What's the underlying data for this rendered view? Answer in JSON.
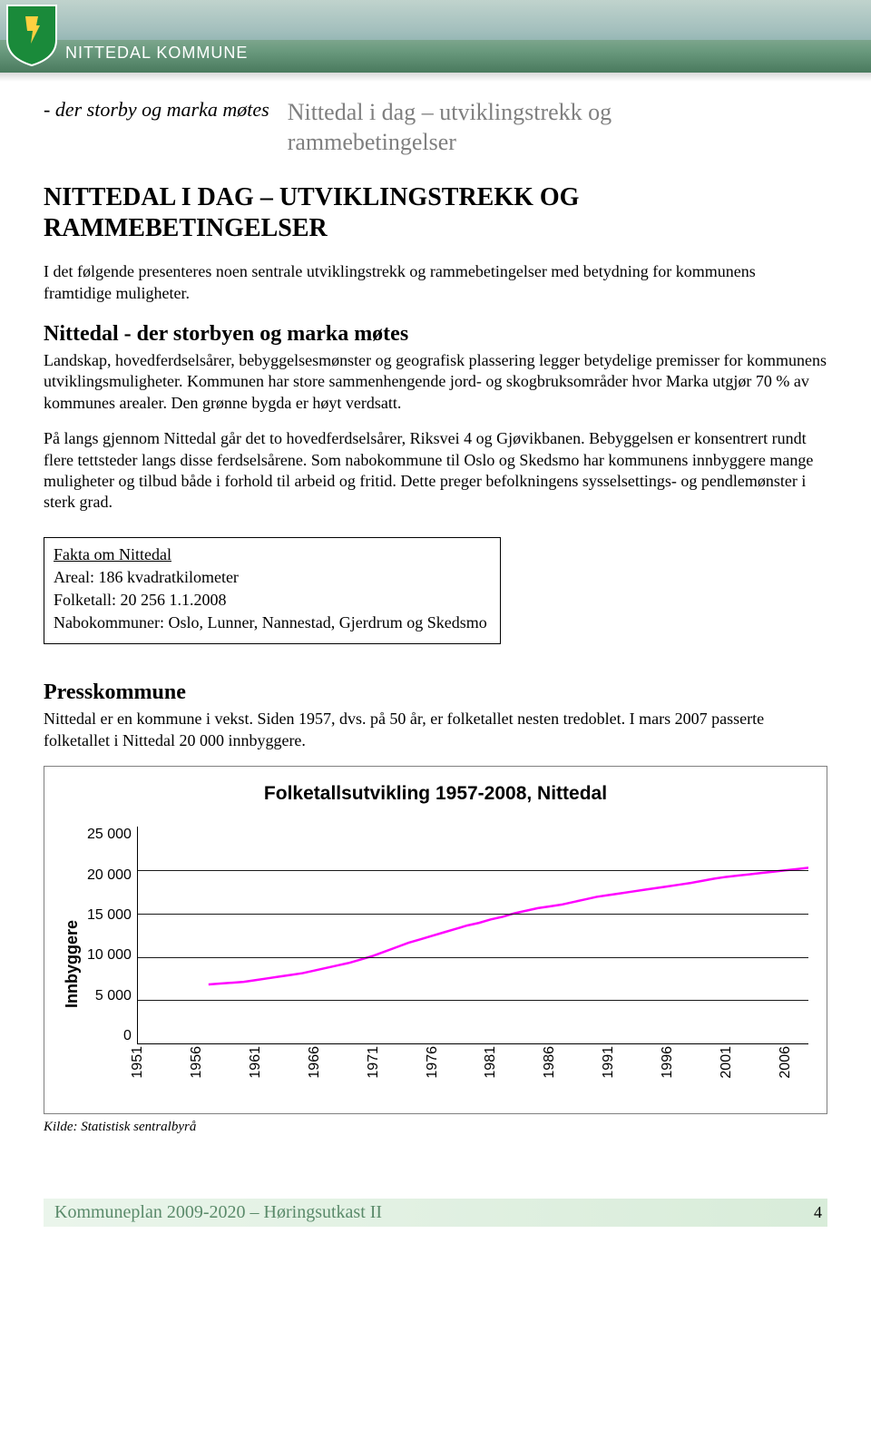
{
  "banner": {
    "org_name": "NITTEDAL KOMMUNE"
  },
  "header": {
    "motto": "- der storby og marka møtes",
    "title_line1": "Nittedal i dag – utviklingstrekk og",
    "title_line2": "rammebetingelser"
  },
  "main_heading_l1": "NITTEDAL I DAG – UTVIKLINGSTREKK OG",
  "main_heading_l2": "RAMMEBETINGELSER",
  "intro_text": "I det følgende presenteres noen sentrale utviklingstrekk og rammebetingelser med betydning for kommunens framtidige muligheter.",
  "section1": {
    "heading": "Nittedal - der storbyen og marka møtes",
    "para1": "Landskap, hovedferdselsårer, bebyggelsesmønster og geografisk plassering legger betydelige premisser for kommunens utviklingsmuligheter. Kommunen har store sammenhengende jord- og skogbruksområder hvor Marka utgjør 70 % av kommunes arealer. Den grønne bygda er høyt verdsatt.",
    "para2": "På langs gjennom Nittedal går det to hovedferdselsårer, Riksvei 4 og Gjøvikbanen. Bebyggelsen er konsentrert rundt flere tettsteder langs disse ferdselsårene. Som nabokommune til Oslo og Skedsmo har kommunens innbyggere mange muligheter og tilbud både i forhold til arbeid og fritid. Dette preger befolkningens sysselsettings- og pendlemønster i sterk grad."
  },
  "fakta": {
    "title": "Fakta om Nittedal",
    "line1": "Areal: 186 kvadratkilometer",
    "line2": "Folketall: 20 256 1.1.2008",
    "line3": "Nabokommuner: Oslo, Lunner, Nannestad, Gjerdrum og Skedsmo"
  },
  "section2": {
    "heading": "Presskommune",
    "para": "Nittedal er en kommune i vekst. Siden 1957, dvs. på 50 år, er folketallet nesten tredoblet. I mars 2007 passerte folketallet i Nittedal 20 000 innbyggere."
  },
  "chart": {
    "type": "line",
    "title": "Folketallsutvikling 1957-2008, Nittedal",
    "y_label": "Innbyggere",
    "y_ticks": [
      "25 000",
      "20 000",
      "15 000",
      "10 000",
      "5 000",
      "0"
    ],
    "ylim": [
      0,
      25000
    ],
    "x_ticks": [
      "1951",
      "1956",
      "1961",
      "1966",
      "1971",
      "1976",
      "1981",
      "1986",
      "1991",
      "1996",
      "2001",
      "2006"
    ],
    "x_tick_step_years": 5,
    "x_range": [
      1951,
      2008
    ],
    "line_color": "#ff00ff",
    "line_width": 2.5,
    "grid_color": "#000000",
    "background_color": "#ffffff",
    "series": [
      {
        "x": 1957,
        "y": 6800
      },
      {
        "x": 1958,
        "y": 6900
      },
      {
        "x": 1959,
        "y": 7000
      },
      {
        "x": 1960,
        "y": 7100
      },
      {
        "x": 1961,
        "y": 7300
      },
      {
        "x": 1962,
        "y": 7500
      },
      {
        "x": 1963,
        "y": 7700
      },
      {
        "x": 1964,
        "y": 7900
      },
      {
        "x": 1965,
        "y": 8100
      },
      {
        "x": 1966,
        "y": 8400
      },
      {
        "x": 1967,
        "y": 8700
      },
      {
        "x": 1968,
        "y": 9000
      },
      {
        "x": 1969,
        "y": 9300
      },
      {
        "x": 1970,
        "y": 9700
      },
      {
        "x": 1971,
        "y": 10100
      },
      {
        "x": 1972,
        "y": 10600
      },
      {
        "x": 1973,
        "y": 11100
      },
      {
        "x": 1974,
        "y": 11600
      },
      {
        "x": 1975,
        "y": 12000
      },
      {
        "x": 1976,
        "y": 12400
      },
      {
        "x": 1977,
        "y": 12800
      },
      {
        "x": 1978,
        "y": 13200
      },
      {
        "x": 1979,
        "y": 13600
      },
      {
        "x": 1980,
        "y": 13900
      },
      {
        "x": 1981,
        "y": 14300
      },
      {
        "x": 1982,
        "y": 14600
      },
      {
        "x": 1983,
        "y": 15000
      },
      {
        "x": 1984,
        "y": 15300
      },
      {
        "x": 1985,
        "y": 15600
      },
      {
        "x": 1986,
        "y": 15800
      },
      {
        "x": 1987,
        "y": 16000
      },
      {
        "x": 1988,
        "y": 16300
      },
      {
        "x": 1989,
        "y": 16600
      },
      {
        "x": 1990,
        "y": 16900
      },
      {
        "x": 1991,
        "y": 17100
      },
      {
        "x": 1992,
        "y": 17300
      },
      {
        "x": 1993,
        "y": 17500
      },
      {
        "x": 1994,
        "y": 17700
      },
      {
        "x": 1995,
        "y": 17900
      },
      {
        "x": 1996,
        "y": 18100
      },
      {
        "x": 1997,
        "y": 18300
      },
      {
        "x": 1998,
        "y": 18500
      },
      {
        "x": 1999,
        "y": 18750
      },
      {
        "x": 2000,
        "y": 19000
      },
      {
        "x": 2001,
        "y": 19200
      },
      {
        "x": 2002,
        "y": 19350
      },
      {
        "x": 2003,
        "y": 19500
      },
      {
        "x": 2004,
        "y": 19650
      },
      {
        "x": 2005,
        "y": 19800
      },
      {
        "x": 2006,
        "y": 19950
      },
      {
        "x": 2007,
        "y": 20100
      },
      {
        "x": 2008,
        "y": 20256
      }
    ]
  },
  "source_line": "Kilde: Statistisk sentralbyrå",
  "footer": {
    "text": "Kommuneplan 2009-2020 – Høringsutkast II",
    "page": "4"
  }
}
